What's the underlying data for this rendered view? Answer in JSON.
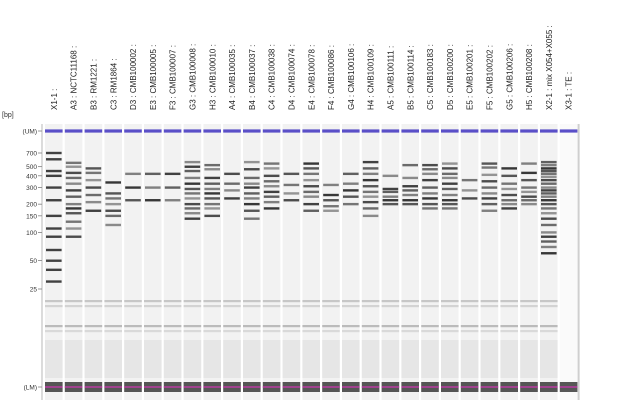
{
  "axis": {
    "unit_label": "[bp]",
    "ticks": [
      {
        "label": "(UM)",
        "bp": "UM"
      },
      {
        "label": "700",
        "bp": 700
      },
      {
        "label": "500",
        "bp": 500
      },
      {
        "label": "400",
        "bp": 400
      },
      {
        "label": "300",
        "bp": 300
      },
      {
        "label": "200",
        "bp": 200
      },
      {
        "label": "150",
        "bp": 150
      },
      {
        "label": "100",
        "bp": 100
      },
      {
        "label": "50",
        "bp": 50
      },
      {
        "label": "25",
        "bp": 25
      },
      {
        "label": "(LM)",
        "bp": "LM"
      }
    ]
  },
  "colors": {
    "upper_marker": "#5a4fc8",
    "lower_marker": "#c03aa8",
    "band": "#222222",
    "lane_bg": "#f2f2f2"
  },
  "lanes": [
    {
      "label": "X1-1 :",
      "bands": [
        700,
        600,
        450,
        400,
        300,
        220,
        150,
        110,
        90,
        65,
        50,
        40,
        30
      ],
      "ladder": true
    },
    {
      "label": "A3 : NCTC11168 :",
      "bands": [
        550,
        500,
        430,
        380,
        330,
        280,
        240,
        200,
        180,
        160,
        130,
        110,
        90
      ]
    },
    {
      "label": "B3 : RM1221 :",
      "bands": [
        480,
        430,
        360,
        300,
        250,
        210,
        170
      ]
    },
    {
      "label": "C3 : RM1864 :",
      "bands": [
        340,
        260,
        230,
        200,
        170,
        150,
        120
      ]
    },
    {
      "label": "D3 : CMB100002 :",
      "bands": [
        420,
        300,
        220
      ]
    },
    {
      "label": "E3 : CMB100005 :",
      "bands": [
        420,
        300,
        220
      ]
    },
    {
      "label": "F3 : CMB100007 :",
      "bands": [
        420,
        300,
        220
      ]
    },
    {
      "label": "G3 : CMB100008 :",
      "bands": [
        560,
        500,
        450,
        380,
        330,
        290,
        260,
        230,
        200,
        180,
        160,
        140
      ]
    },
    {
      "label": "H3 : CMB100010 :",
      "bands": [
        520,
        470,
        380,
        330,
        290,
        260,
        230,
        200,
        180,
        150
      ]
    },
    {
      "label": "A4 : CMB100035 :",
      "bands": [
        420,
        330,
        280,
        230
      ]
    },
    {
      "label": "B4 : CMB100037 :",
      "bands": [
        560,
        470,
        380,
        330,
        300,
        260,
        230,
        200,
        170,
        140
      ]
    },
    {
      "label": "C4 : CMB100038 :",
      "bands": [
        540,
        480,
        400,
        350,
        310,
        270,
        240,
        210,
        180
      ]
    },
    {
      "label": "D4 : CMB100074 :",
      "bands": [
        420,
        320,
        260,
        220
      ]
    },
    {
      "label": "E4 : CMB100078 :",
      "bands": [
        540,
        480,
        420,
        360,
        310,
        270,
        240,
        200,
        170
      ]
    },
    {
      "label": "F4 : CMB100086 :",
      "bands": [
        320,
        250,
        220,
        190,
        170
      ]
    },
    {
      "label": "G4 : CMB100106 :",
      "bands": [
        420,
        330,
        280,
        240,
        200
      ]
    },
    {
      "label": "H4 : CMB100109 :",
      "bands": [
        560,
        480,
        420,
        360,
        310,
        270,
        240,
        210,
        180,
        150
      ]
    },
    {
      "label": "A5 : CMB100111 :",
      "bands": [
        400,
        290,
        270,
        240,
        220,
        200
      ]
    },
    {
      "label": "B5 : CMB100114 :",
      "bands": [
        520,
        380,
        310,
        280,
        250,
        220,
        200
      ]
    },
    {
      "label": "C5 : CMB100183 :",
      "bands": [
        520,
        470,
        420,
        360,
        300,
        260,
        230,
        200,
        180
      ]
    },
    {
      "label": "D5 : CMB100200 :",
      "bands": [
        540,
        480,
        420,
        380,
        330,
        290,
        250,
        220,
        200,
        180
      ]
    },
    {
      "label": "E5 : CMB100201 :",
      "bands": [
        360,
        280,
        230
      ]
    },
    {
      "label": "F5 : CMB100202 :",
      "bands": [
        540,
        490,
        410,
        350,
        300,
        260,
        230,
        200,
        170
      ]
    },
    {
      "label": "G5 : CMB100206 :",
      "bands": [
        480,
        400,
        330,
        290,
        250,
        220,
        200,
        180
      ]
    },
    {
      "label": "H5 : CMB100208 :",
      "bands": [
        540,
        430,
        360,
        300,
        270,
        240,
        220,
        200
      ]
    },
    {
      "label": "X2-1 : mix X054+X055 :",
      "bands": [
        560,
        520,
        480,
        450,
        420,
        390,
        360,
        330,
        300,
        280,
        260,
        240,
        220,
        200,
        180,
        160,
        140,
        120,
        100,
        90,
        80,
        70,
        60
      ]
    },
    {
      "label": "X3-1 : TE :",
      "bands": [],
      "empty": true
    }
  ]
}
